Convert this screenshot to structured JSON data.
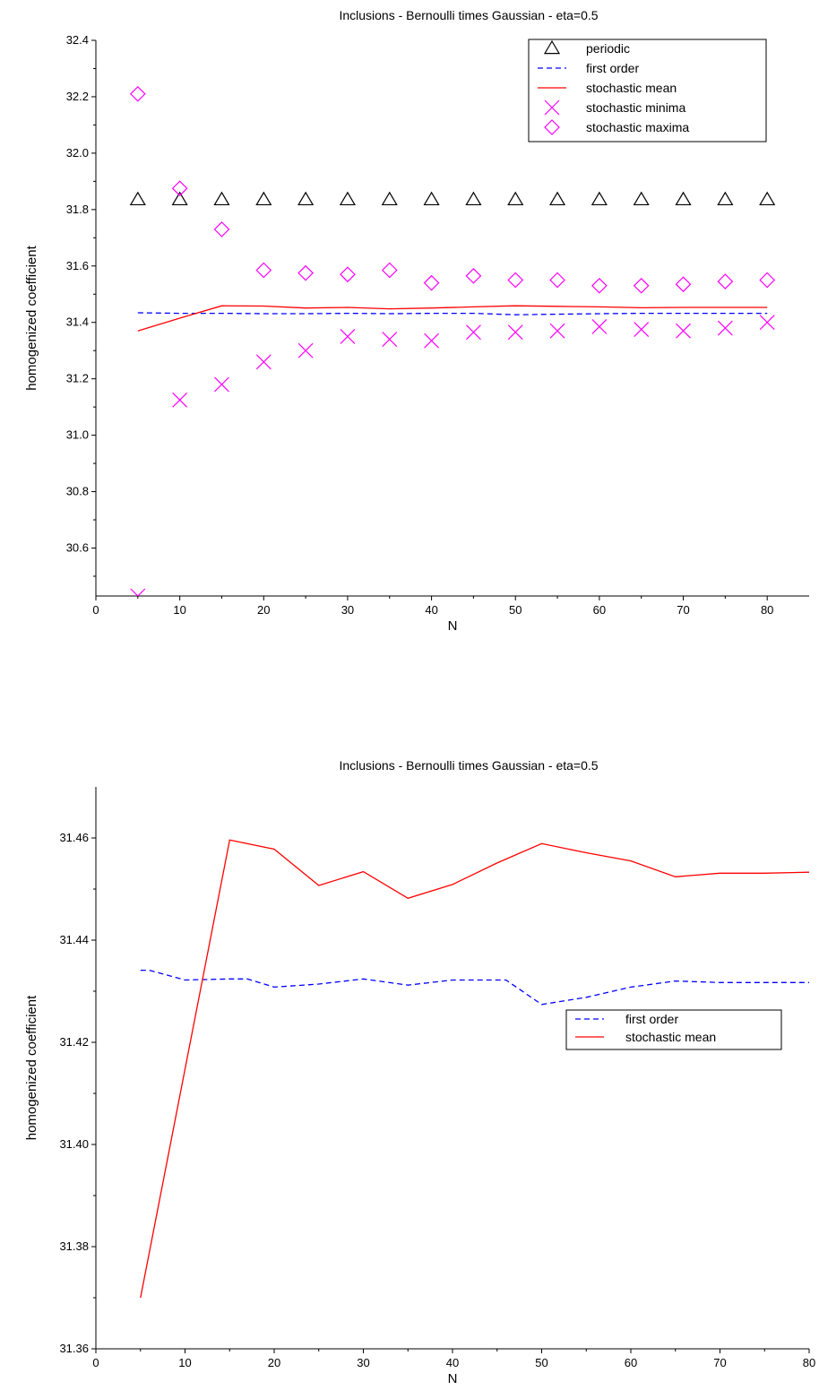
{
  "chart_data": [
    {
      "type": "scatter",
      "title": "Inclusions - Bernoulli times Gaussian - eta=0.5",
      "xlabel": "N",
      "ylabel": "homogenized coefficient",
      "xlim": [
        0,
        85
      ],
      "ylim": [
        30.43,
        32.4
      ],
      "xticks": [
        0,
        10,
        20,
        30,
        40,
        50,
        60,
        70,
        80
      ],
      "xtick_labels": [
        "0",
        "10",
        "20",
        "30",
        "40",
        "50",
        "60",
        "70",
        "80"
      ],
      "yticks": [
        30.6,
        30.8,
        31.0,
        31.2,
        31.4,
        31.6,
        31.8,
        32.0,
        32.2,
        32.4
      ],
      "ytick_labels": [
        "30.6",
        "30.8",
        "31.0",
        "31.2",
        "31.4",
        "31.6",
        "31.8",
        "32.0",
        "32.2",
        "32.4"
      ],
      "legend_position": "top-right",
      "grid": false,
      "series": [
        {
          "name": "periodic",
          "kind": "marker",
          "marker": "triangle",
          "color": "#000000",
          "x": [
            5,
            10,
            15,
            20,
            25,
            30,
            35,
            40,
            45,
            50,
            55,
            60,
            65,
            70,
            75,
            80
          ],
          "y": [
            31.835,
            31.835,
            31.835,
            31.835,
            31.835,
            31.835,
            31.835,
            31.835,
            31.835,
            31.835,
            31.835,
            31.835,
            31.835,
            31.835,
            31.835,
            31.835
          ]
        },
        {
          "name": "first order",
          "kind": "line",
          "dash": true,
          "color": "#0000ff",
          "x": [
            5,
            10,
            15,
            20,
            25,
            30,
            35,
            40,
            45,
            50,
            55,
            60,
            65,
            70,
            75,
            80
          ],
          "y": [
            31.434,
            31.432,
            31.432,
            31.431,
            31.431,
            31.432,
            31.431,
            31.432,
            31.432,
            31.427,
            31.429,
            31.431,
            31.432,
            31.432,
            31.432,
            31.432
          ]
        },
        {
          "name": "stochastic mean",
          "kind": "line",
          "dash": false,
          "color": "#ff0000",
          "x": [
            5,
            10,
            15,
            20,
            25,
            30,
            35,
            40,
            45,
            50,
            55,
            60,
            65,
            70,
            75,
            80
          ],
          "y": [
            31.37,
            31.415,
            31.459,
            31.458,
            31.451,
            31.453,
            31.448,
            31.451,
            31.455,
            31.459,
            31.457,
            31.455,
            31.452,
            31.453,
            31.453,
            31.453
          ]
        },
        {
          "name": "stochastic minima",
          "kind": "marker",
          "marker": "x",
          "color": "#ff00ff",
          "x": [
            5,
            10,
            15,
            20,
            25,
            30,
            35,
            40,
            45,
            50,
            55,
            60,
            65,
            70,
            75,
            80
          ],
          "y": [
            30.43,
            31.125,
            31.18,
            31.26,
            31.3,
            31.35,
            31.34,
            31.335,
            31.365,
            31.365,
            31.37,
            31.385,
            31.375,
            31.37,
            31.38,
            31.4
          ]
        },
        {
          "name": "stochastic maxima",
          "kind": "marker",
          "marker": "diamond",
          "color": "#ff00ff",
          "x": [
            5,
            10,
            15,
            20,
            25,
            30,
            35,
            40,
            45,
            50,
            55,
            60,
            65,
            70,
            75,
            80
          ],
          "y": [
            32.21,
            31.875,
            31.73,
            31.585,
            31.575,
            31.57,
            31.585,
            31.54,
            31.565,
            31.55,
            31.55,
            31.53,
            31.53,
            31.535,
            31.545,
            31.55
          ]
        }
      ]
    },
    {
      "type": "line",
      "title": "Inclusions - Bernoulli times Gaussian - eta=0.5",
      "xlabel": "N",
      "ylabel": "homogenized coefficient",
      "xlim": [
        0,
        80
      ],
      "ylim": [
        31.36,
        31.47
      ],
      "xticks": [
        0,
        10,
        20,
        30,
        40,
        50,
        60,
        70,
        80
      ],
      "xtick_labels": [
        "0",
        "10",
        "20",
        "30",
        "40",
        "50",
        "60",
        "70",
        "80"
      ],
      "yticks": [
        31.36,
        31.38,
        31.4,
        31.42,
        31.44,
        31.46
      ],
      "ytick_labels": [
        "31.36",
        "31.38",
        "31.40",
        "31.42",
        "31.44",
        "31.46"
      ],
      "legend_position": "center-right",
      "grid": false,
      "series": [
        {
          "name": "first order",
          "kind": "line",
          "dash": true,
          "color": "#0000ff",
          "x": [
            5,
            6,
            10,
            15,
            17,
            20,
            25,
            30,
            35,
            40,
            45,
            46,
            50,
            55,
            60,
            65,
            70,
            75,
            80
          ],
          "y": [
            31.4341,
            31.4341,
            31.4322,
            31.4324,
            31.4324,
            31.4308,
            31.4314,
            31.4324,
            31.4312,
            31.4322,
            31.4322,
            31.4322,
            31.4274,
            31.4288,
            31.4308,
            31.432,
            31.4317,
            31.4317,
            31.4317
          ]
        },
        {
          "name": "stochastic mean",
          "kind": "line",
          "dash": false,
          "color": "#ff0000",
          "x": [
            5,
            15,
            20,
            25,
            30,
            35,
            40,
            45,
            50,
            55,
            60,
            65,
            70,
            75,
            80
          ],
          "y": [
            31.37,
            31.4596,
            31.4578,
            31.4507,
            31.4534,
            31.4482,
            31.4509,
            31.4551,
            31.4589,
            31.4571,
            31.4555,
            31.4524,
            31.4531,
            31.4531,
            31.4533
          ]
        }
      ]
    }
  ]
}
